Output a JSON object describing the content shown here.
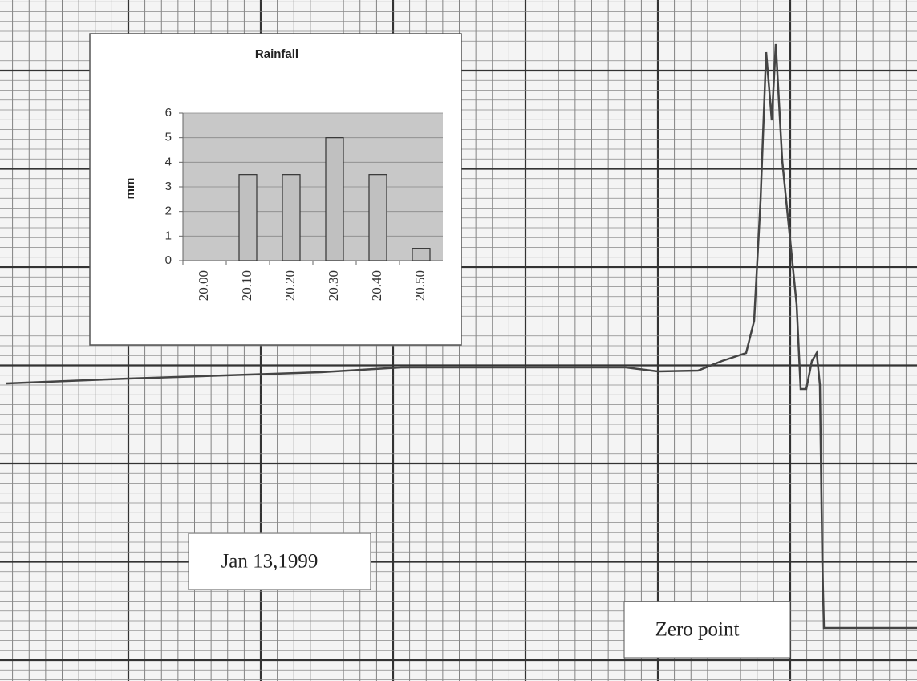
{
  "chart_data": {
    "type": "bar",
    "title": "Rainfall",
    "y_label": "mm",
    "categories": [
      "20.00",
      "20.10",
      "20.20",
      "20.30",
      "20.40",
      "20.50"
    ],
    "values": [
      0,
      3.5,
      3.5,
      5,
      3.5,
      0.5
    ],
    "color": "#c0c0c0",
    "ylim": [
      0,
      6
    ],
    "yticks": [
      0,
      1,
      2,
      3,
      4,
      5,
      6
    ],
    "grid": true,
    "annotations": [
      "Jan 13,1999",
      "Zero point"
    ]
  }
}
